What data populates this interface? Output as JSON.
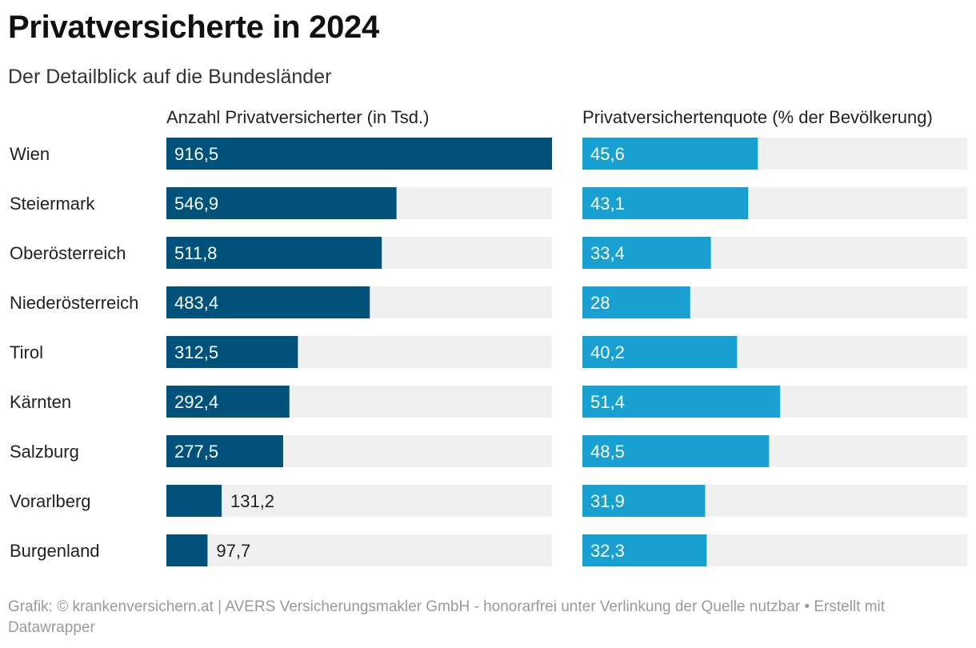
{
  "header": {
    "title": "Privatversicherte in 2024",
    "subtitle": "Der Detailblick auf die Bundesländer"
  },
  "colors": {
    "bar_left": "#00527a",
    "bar_right": "#18a1d0",
    "track": "#f0f0f0",
    "label_inside": "#ffffff",
    "label_outside": "#222222"
  },
  "chart_data": {
    "type": "bar",
    "orientation": "horizontal",
    "categories": [
      "Wien",
      "Steiermark",
      "Oberösterreich",
      "Niederösterreich",
      "Tirol",
      "Kärnten",
      "Salzburg",
      "Vorarlberg",
      "Burgenland"
    ],
    "series": [
      {
        "name": "Anzahl Privatversicherter (in Tsd.)",
        "values": [
          916.5,
          546.9,
          511.8,
          483.4,
          312.5,
          292.4,
          277.5,
          131.2,
          97.7
        ],
        "labels": [
          "916,5",
          "546,9",
          "511,8",
          "483,4",
          "312,5",
          "292,4",
          "277,5",
          "131,2",
          "97,7"
        ],
        "xlim": [
          0,
          916.5
        ]
      },
      {
        "name": "Privatversichertenquote (% der Bevölkerung)",
        "values": [
          45.6,
          43.1,
          33.4,
          28,
          40.2,
          51.4,
          48.5,
          31.9,
          32.3
        ],
        "labels": [
          "45,6",
          "43,1",
          "33,4",
          "28",
          "40,2",
          "51,4",
          "48,5",
          "31,9",
          "32,3"
        ],
        "xlim": [
          0,
          100
        ]
      }
    ]
  },
  "footer": {
    "text": "Grafik: © krankenversichern.at | AVERS Versicherungsmakler GmbH - honorarfrei unter Verlinkung der Quelle nutzbar • Erstellt mit Datawrapper"
  }
}
